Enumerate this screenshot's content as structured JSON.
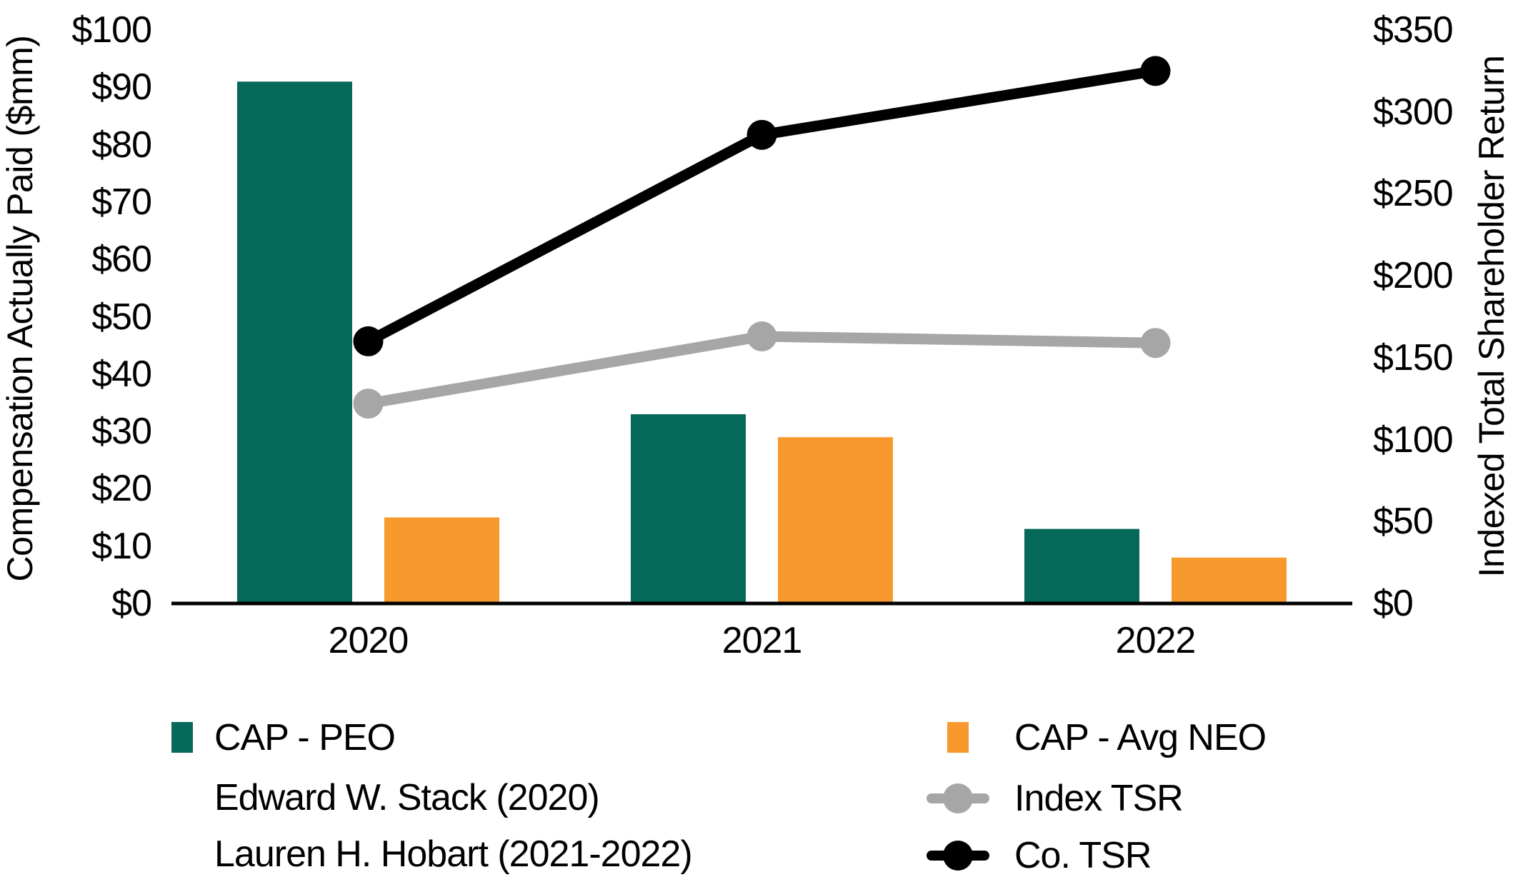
{
  "chart_data": {
    "type": "bar+line",
    "categories": [
      "2020",
      "2021",
      "2022"
    ],
    "bar_series": [
      {
        "name": "CAP - PEO",
        "axis": "left",
        "color": "#066858",
        "values": [
          91,
          33,
          13
        ]
      },
      {
        "name": "CAP - Avg NEO",
        "axis": "left",
        "color": "#F8992D",
        "values": [
          15,
          29,
          8
        ]
      }
    ],
    "line_series": [
      {
        "name": "Index TSR",
        "axis": "right",
        "color": "#A6A6A6",
        "values": [
          122,
          163,
          159
        ]
      },
      {
        "name": "Co. TSR",
        "axis": "right",
        "color": "#000000",
        "values": [
          160,
          286,
          325
        ]
      }
    ],
    "left_axis": {
      "label": "Compensation Actually Paid ($mm)",
      "min": 0,
      "max": 100,
      "step": 10,
      "ticks": [
        "$0",
        "$10",
        "$20",
        "$30",
        "$40",
        "$50",
        "$60",
        "$70",
        "$80",
        "$90",
        "$100"
      ]
    },
    "right_axis": {
      "label": "Indexed Total Shareholder Return",
      "min": 0,
      "max": 350,
      "step": 50,
      "ticks": [
        "$0",
        "$50",
        "$100",
        "$150",
        "$200",
        "$250",
        "$300",
        "$350"
      ]
    },
    "grid": "off",
    "legend_position": "bottom"
  },
  "legend": {
    "peo_notes": [
      "Edward W. Stack (2020)",
      "Lauren H. Hobart (2021-2022)"
    ]
  },
  "colors": {
    "bar_peo": "#066858",
    "bar_avg_neo": "#F8992D",
    "index_tsr": "#A6A6A6",
    "co_tsr": "#000000",
    "axis": "#000000",
    "background": "#FFFFFF"
  }
}
